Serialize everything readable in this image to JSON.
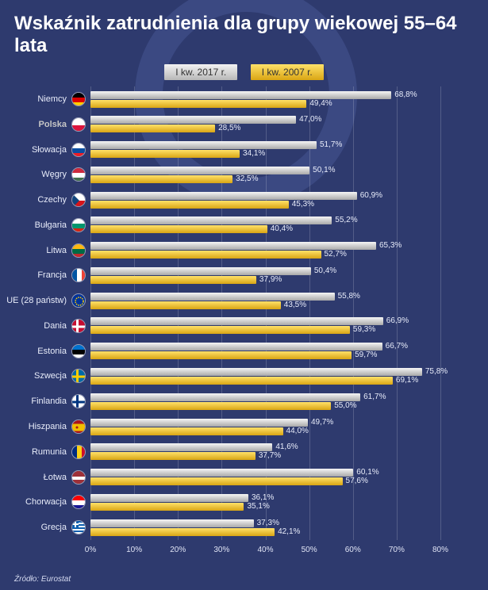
{
  "title": "Wskaźnik zatrudnienia dla grupy wiekowej 55–64 lata",
  "legend": {
    "y2017": "I kw. 2017 r.",
    "y2007": "I kw. 2007 r."
  },
  "axis": {
    "min": 0,
    "max": 80,
    "step": 10,
    "ticks": [
      "0%",
      "10%",
      "20%",
      "30%",
      "40%",
      "50%",
      "60%",
      "70%",
      "80%"
    ]
  },
  "series_colors": {
    "bar2017": "linear-gradient(#f5f5f5,#a8a8a8)",
    "bar2007": "linear-gradient(#ffe169,#d9a514)"
  },
  "background_color": "#2e3a6e",
  "source": "Źródło: Eurostat",
  "rows": [
    {
      "label": "Niemcy",
      "v2017": 68.8,
      "v2007": 49.4,
      "flag": {
        "type": "tri-h",
        "c": [
          "#000",
          "#dd0000",
          "#ffce00"
        ]
      }
    },
    {
      "label": "Polska",
      "v2017": 47.0,
      "v2007": 28.5,
      "highlight": true,
      "flag": {
        "type": "bi-h",
        "c": [
          "#fff",
          "#dc143c"
        ]
      }
    },
    {
      "label": "Słowacja",
      "v2017": 51.7,
      "v2007": 34.1,
      "flag": {
        "type": "tri-h",
        "c": [
          "#fff",
          "#0b4ea2",
          "#ee1c25"
        ]
      }
    },
    {
      "label": "Węgry",
      "v2017": 50.1,
      "v2007": 32.5,
      "flag": {
        "type": "tri-h",
        "c": [
          "#cd2a3e",
          "#fff",
          "#436f4d"
        ]
      }
    },
    {
      "label": "Czechy",
      "v2017": 60.9,
      "v2007": 45.3,
      "flag": {
        "type": "cz"
      }
    },
    {
      "label": "Bułgaria",
      "v2017": 55.2,
      "v2007": 40.4,
      "flag": {
        "type": "tri-h",
        "c": [
          "#fff",
          "#00966e",
          "#d62612"
        ]
      }
    },
    {
      "label": "Litwa",
      "v2017": 65.3,
      "v2007": 52.7,
      "flag": {
        "type": "tri-h",
        "c": [
          "#fdb913",
          "#006a44",
          "#c1272d"
        ]
      }
    },
    {
      "label": "Francja",
      "v2017": 50.4,
      "v2007": 37.9,
      "flag": {
        "type": "tri-v",
        "c": [
          "#0055a4",
          "#fff",
          "#ef4135"
        ]
      }
    },
    {
      "label": "UE (28 państw)",
      "v2017": 55.8,
      "v2007": 43.5,
      "flag": {
        "type": "eu"
      }
    },
    {
      "label": "Dania",
      "v2017": 66.9,
      "v2007": 59.3,
      "flag": {
        "type": "dk"
      }
    },
    {
      "label": "Estonia",
      "v2017": 66.7,
      "v2007": 59.7,
      "flag": {
        "type": "tri-h",
        "c": [
          "#0072ce",
          "#000",
          "#fff"
        ]
      }
    },
    {
      "label": "Szwecja",
      "v2017": 75.8,
      "v2007": 69.1,
      "flag": {
        "type": "se"
      }
    },
    {
      "label": "Finlandia",
      "v2017": 61.7,
      "v2007": 55.0,
      "flag": {
        "type": "fi"
      }
    },
    {
      "label": "Hiszpania",
      "v2017": 49.7,
      "v2007": 44.0,
      "flag": {
        "type": "es"
      }
    },
    {
      "label": "Rumunia",
      "v2017": 41.6,
      "v2007": 37.7,
      "flag": {
        "type": "tri-v",
        "c": [
          "#002b7f",
          "#fcd116",
          "#ce1126"
        ]
      }
    },
    {
      "label": "Łotwa",
      "v2017": 60.1,
      "v2007": 57.6,
      "flag": {
        "type": "lv"
      }
    },
    {
      "label": "Chorwacja",
      "v2017": 36.1,
      "v2007": 35.1,
      "flag": {
        "type": "tri-h",
        "c": [
          "#ff0000",
          "#fff",
          "#171796"
        ]
      }
    },
    {
      "label": "Grecja",
      "v2017": 37.3,
      "v2007": 42.1,
      "flag": {
        "type": "gr"
      }
    }
  ]
}
